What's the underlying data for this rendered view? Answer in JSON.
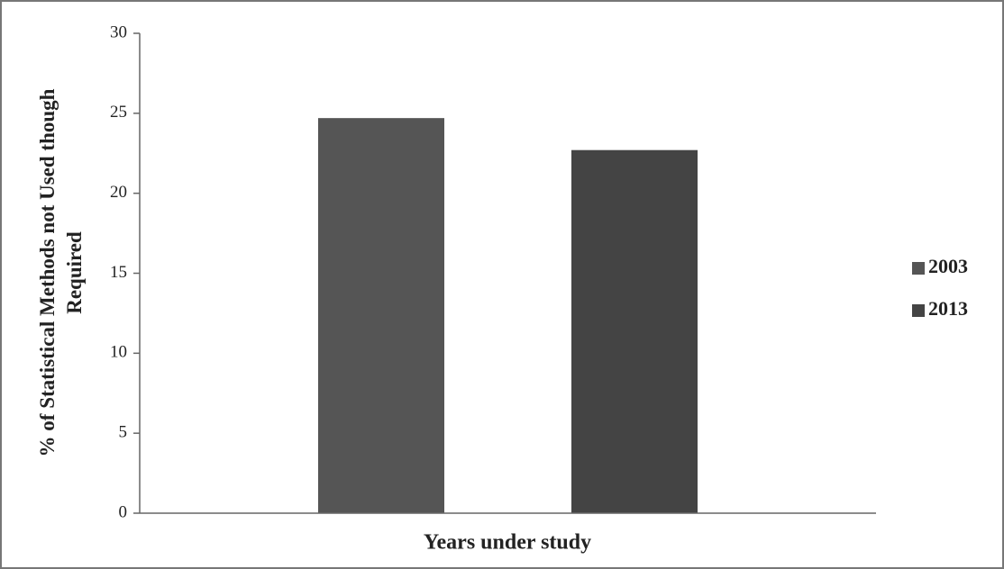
{
  "chart_data": {
    "type": "bar",
    "x_label": "Years under study",
    "y_label": "% of Statistical Methods not Used though Required",
    "categories": [
      null
    ],
    "series": [
      {
        "name": "2003",
        "color": "#555555",
        "values": [
          24.7
        ]
      },
      {
        "name": "2013",
        "color": "#444444",
        "values": [
          22.7
        ]
      }
    ],
    "ylim": [
      0,
      30
    ],
    "yticks": [
      0,
      5,
      10,
      15,
      20,
      25,
      30
    ],
    "grid": false,
    "legend": "right"
  }
}
